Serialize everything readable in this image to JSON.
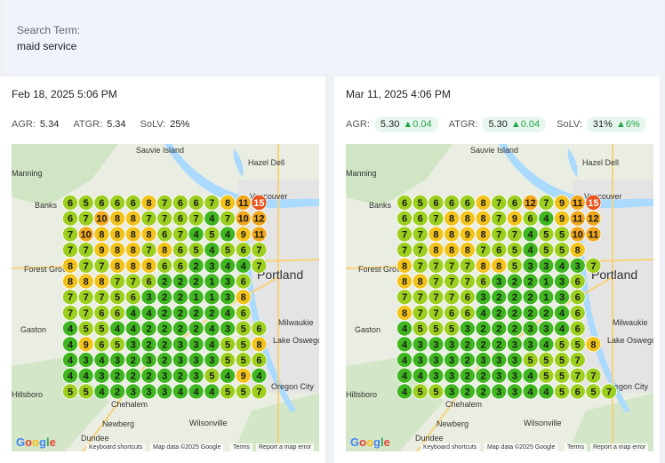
{
  "search": {
    "label": "Search Term:",
    "value": "maid service"
  },
  "panels": [
    {
      "date": "Feb 18, 2025 5:06 PM",
      "metrics": {
        "agr_label": "AGR:",
        "agr": "5.34",
        "atgr_label": "ATGR:",
        "atgr": "5.34",
        "solv_label": "SoLV:",
        "solv": "25%"
      },
      "grid": [
        [
          6,
          5,
          6,
          6,
          6,
          8,
          7,
          6,
          6,
          7,
          8,
          11,
          15
        ],
        [
          6,
          7,
          10,
          8,
          8,
          7,
          7,
          6,
          7,
          4,
          7,
          10,
          12
        ],
        [
          7,
          10,
          8,
          8,
          8,
          8,
          6,
          7,
          4,
          5,
          4,
          9,
          11
        ],
        [
          7,
          7,
          9,
          8,
          8,
          7,
          8,
          6,
          5,
          4,
          5,
          6,
          7
        ],
        [
          8,
          7,
          7,
          8,
          8,
          8,
          6,
          6,
          2,
          3,
          4,
          4,
          7
        ],
        [
          8,
          8,
          8,
          7,
          7,
          6,
          2,
          2,
          2,
          1,
          3,
          6
        ],
        [
          7,
          7,
          7,
          5,
          6,
          3,
          2,
          2,
          1,
          1,
          3,
          8
        ],
        [
          7,
          7,
          6,
          6,
          4,
          4,
          2,
          2,
          2,
          2,
          4,
          6
        ],
        [
          4,
          5,
          5,
          4,
          4,
          2,
          2,
          2,
          2,
          4,
          3,
          5,
          6
        ],
        [
          4,
          9,
          6,
          5,
          3,
          2,
          2,
          3,
          3,
          4,
          5,
          5,
          8
        ],
        [
          4,
          3,
          4,
          3,
          2,
          3,
          2,
          3,
          3,
          3,
          5,
          5,
          6
        ],
        [
          4,
          4,
          3,
          2,
          2,
          2,
          3,
          2,
          3,
          5,
          4,
          9,
          4
        ],
        [
          5,
          5,
          4,
          2,
          3,
          3,
          3,
          4,
          4,
          4,
          5,
          5,
          7
        ]
      ],
      "footer": {
        "shortcuts": "Keyboard shortcuts",
        "mapdata": "Map data ©2025 Google",
        "terms": "Terms",
        "report": "Report a map error"
      }
    },
    {
      "date": "Mar 11, 2025 4:06 PM",
      "metrics": {
        "agr_label": "AGR:",
        "agr": "5.30",
        "agr_delta": "0.04",
        "atgr_label": "ATGR:",
        "atgr": "5.30",
        "atgr_delta": "0.04",
        "solv_label": "SoLV:",
        "solv": "31%",
        "solv_delta": "6%"
      },
      "grid": [
        [
          6,
          5,
          6,
          6,
          6,
          8,
          7,
          6,
          12,
          7,
          9,
          11,
          15
        ],
        [
          6,
          6,
          7,
          8,
          8,
          8,
          7,
          9,
          6,
          4,
          9,
          11,
          12
        ],
        [
          7,
          7,
          8,
          8,
          9,
          8,
          7,
          7,
          4,
          5,
          5,
          10,
          11
        ],
        [
          7,
          7,
          8,
          8,
          8,
          7,
          6,
          5,
          4,
          5,
          5,
          8
        ],
        [
          8,
          7,
          7,
          7,
          7,
          8,
          8,
          5,
          3,
          3,
          4,
          3,
          7
        ],
        [
          8,
          8,
          7,
          7,
          7,
          6,
          3,
          2,
          2,
          1,
          3,
          6
        ],
        [
          7,
          7,
          7,
          7,
          6,
          3,
          2,
          2,
          2,
          1,
          3,
          6
        ],
        [
          8,
          7,
          7,
          6,
          6,
          4,
          2,
          2,
          2,
          2,
          4,
          6
        ],
        [
          4,
          5,
          5,
          5,
          3,
          2,
          2,
          2,
          3,
          3,
          4,
          6
        ],
        [
          4,
          3,
          3,
          3,
          2,
          2,
          2,
          3,
          3,
          4,
          5,
          5,
          8
        ],
        [
          4,
          3,
          3,
          3,
          2,
          3,
          3,
          3,
          5,
          5,
          5,
          7
        ],
        [
          4,
          4,
          3,
          3,
          2,
          2,
          3,
          3,
          4,
          5,
          5,
          7,
          7
        ],
        [
          4,
          5,
          5,
          3,
          2,
          2,
          3,
          3,
          4,
          4,
          5,
          6,
          5,
          7
        ]
      ],
      "footer": {
        "shortcuts": "Keyboard shortcuts",
        "mapdata": "Map data ©2025 Google",
        "terms": "Terms",
        "report": "Report a map error"
      }
    }
  ],
  "map_labels": {
    "sauvie": "Sauvie Island",
    "hazel": "Hazel Dell",
    "banks": "Banks",
    "manning": "Manning",
    "vancouver": "Vancouver",
    "forest": "Forest Grove",
    "portland": "Portland",
    "gaston": "Gaston",
    "milwaukie": "Milwaukie",
    "oswego": "Lake Oswego",
    "oregoncity": "Oregon City",
    "chehalem": "Chehalem",
    "wilsonville": "Wilsonville",
    "newberg": "Newberg",
    "dundee": "Dundee",
    "hillsboro": "Hillsboro",
    "google": "Google"
  },
  "colors": {
    "green": "#3fb51f",
    "lightgreen": "#9ccf1e",
    "yellow": "#f2c31b",
    "orange": "#f0a71a",
    "red": "#e8541b"
  }
}
